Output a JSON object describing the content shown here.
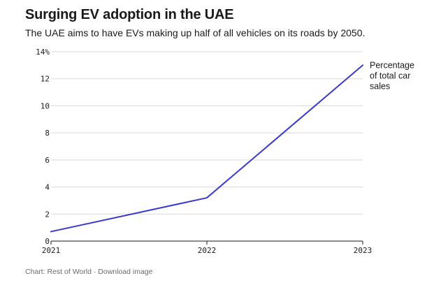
{
  "title": "Surging EV adoption in the UAE",
  "subtitle": "The UAE aims to have EVs making up half of all vehicles on its roads by 2050.",
  "footer": {
    "source": "Chart: Rest of World",
    "separator": " · ",
    "download": "Download image"
  },
  "colors": {
    "line": "#3a3acf",
    "grid": "#d9d9d9",
    "axis": "#1a1a1a"
  },
  "chart_data": {
    "type": "line",
    "x": [
      "2021",
      "2022",
      "2023"
    ],
    "series": [
      {
        "name": "Percentage of total car sales",
        "label_lines": [
          "Percentage",
          "of total car",
          "sales"
        ],
        "values": [
          0.7,
          3.2,
          13.0
        ]
      }
    ],
    "ylim": [
      0,
      14
    ],
    "yticks": [
      0,
      2,
      4,
      6,
      8,
      10,
      12,
      14
    ],
    "ytick_labels": [
      "0",
      "2",
      "4",
      "6",
      "8",
      "10",
      "12",
      "14%"
    ],
    "grid": true,
    "xlabel": "",
    "ylabel": ""
  }
}
